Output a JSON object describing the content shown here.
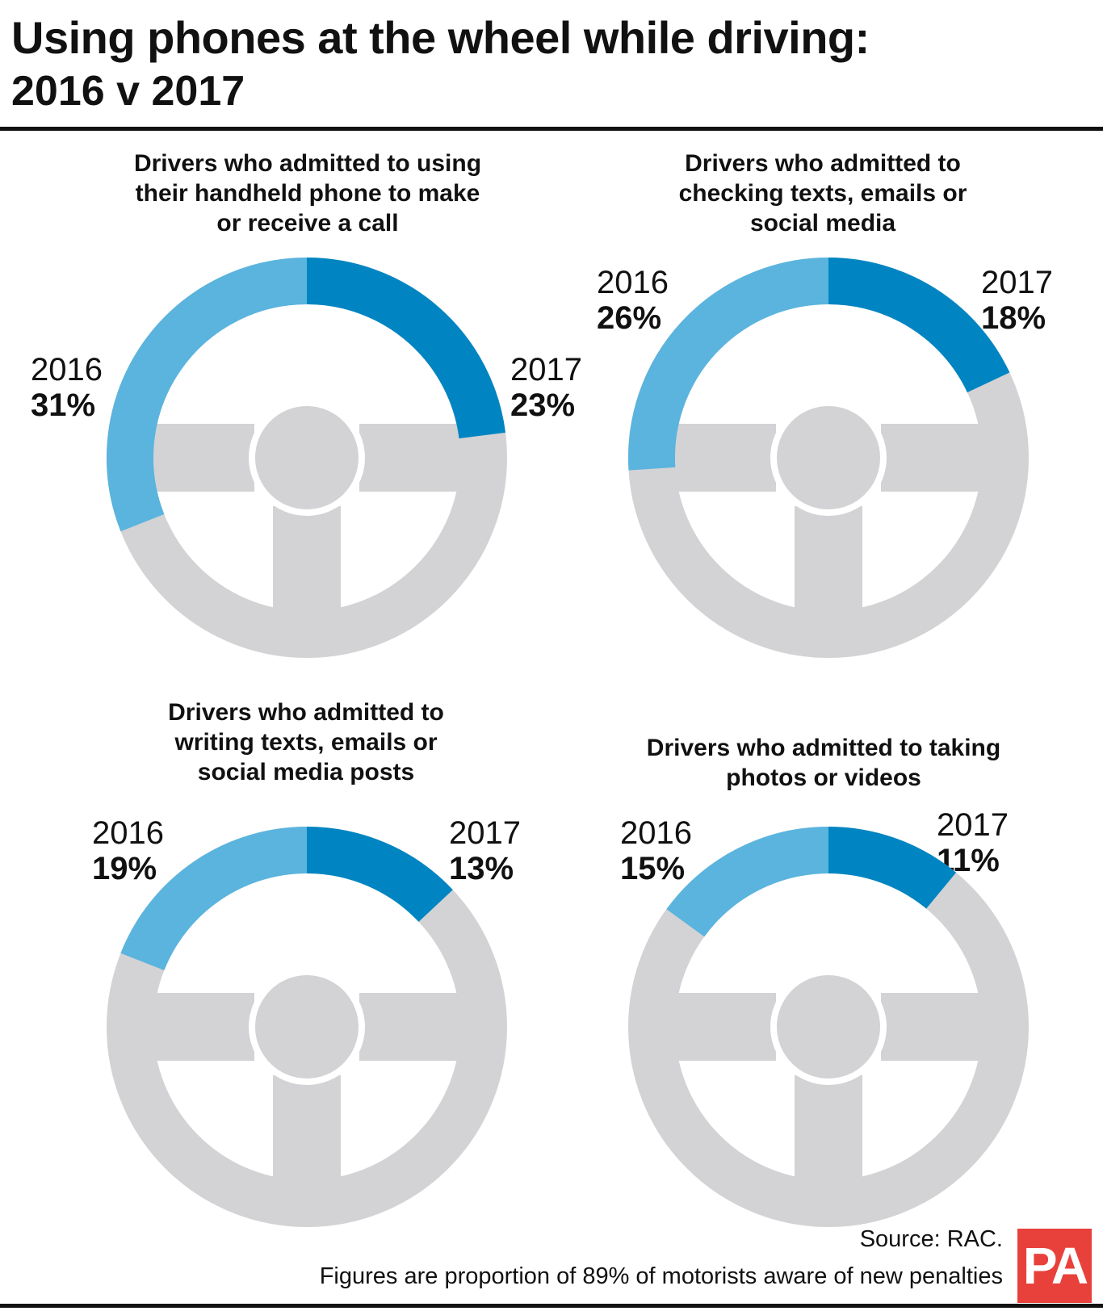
{
  "header": {
    "title": "Using phones at the wheel while driving:",
    "subtitle": "2016 v 2017"
  },
  "colors": {
    "year_2016": "#5ab4de",
    "year_2017": "#0085c2",
    "ring_base": "#d3d3d5",
    "spokes": "#d3d3d5",
    "brand_red": "#e8413b"
  },
  "chart_data": [
    {
      "type": "pie",
      "title": "Drivers who admitted to using their handheld phone to make or receive a call",
      "categories": [
        "2016",
        "2017"
      ],
      "values": [
        31,
        23
      ],
      "unit": "%"
    },
    {
      "type": "pie",
      "title": "Drivers who admitted to checking texts, emails or social media",
      "categories": [
        "2016",
        "2017"
      ],
      "values": [
        26,
        18
      ],
      "unit": "%"
    },
    {
      "type": "pie",
      "title": "Drivers who admitted to writing texts, emails or social media posts",
      "categories": [
        "2016",
        "2017"
      ],
      "values": [
        19,
        13
      ],
      "unit": "%"
    },
    {
      "type": "pie",
      "title": "Drivers who admitted to taking photos or videos",
      "categories": [
        "2016",
        "2017"
      ],
      "values": [
        15,
        11
      ],
      "unit": "%"
    }
  ],
  "panels": [
    {
      "title_lines": [
        "Drivers who admitted to using",
        "their handheld phone to make",
        "or receive a call"
      ],
      "label_2016_year": "2016",
      "label_2016_pct": "31%",
      "label_2017_year": "2017",
      "label_2017_pct": "23%"
    },
    {
      "title_lines": [
        "Drivers who admitted to",
        "checking texts, emails or",
        "social media"
      ],
      "label_2016_year": "2016",
      "label_2016_pct": "26%",
      "label_2017_year": "2017",
      "label_2017_pct": "18%"
    },
    {
      "title_lines": [
        "Drivers who admitted to",
        "writing texts, emails or",
        "social media posts"
      ],
      "label_2016_year": "2016",
      "label_2016_pct": "19%",
      "label_2017_year": "2017",
      "label_2017_pct": "13%"
    },
    {
      "title_lines": [
        "Drivers who admitted to taking",
        "photos or videos"
      ],
      "label_2016_year": "2016",
      "label_2016_pct": "15%",
      "label_2017_year": "2017",
      "label_2017_pct": "11%"
    }
  ],
  "footer": {
    "source": "Source: RAC.",
    "note": "Figures are proportion of 89% of motorists aware of new penalties",
    "logo_text": "PA"
  }
}
